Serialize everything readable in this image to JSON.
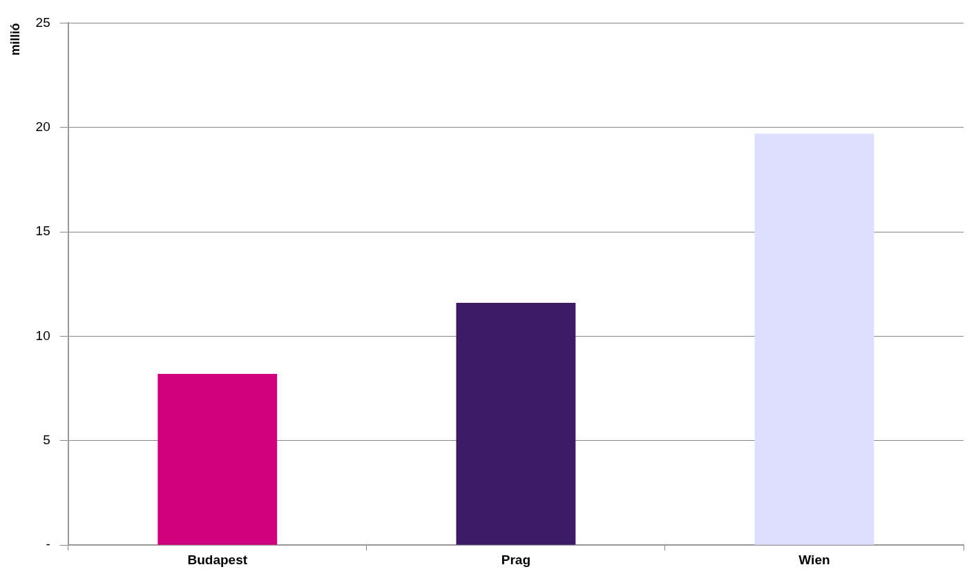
{
  "chart_data": {
    "type": "bar",
    "ylabel": "millió",
    "categories": [
      "Budapest",
      "Prag",
      "Wien"
    ],
    "values": [
      8.2,
      11.6,
      19.7
    ],
    "colors": [
      "#d0007c",
      "#3c1a64",
      "#dedeff"
    ],
    "ylim": [
      0,
      25
    ],
    "yticks": [
      {
        "value": 0,
        "label": "-"
      },
      5,
      10,
      15,
      20,
      25
    ],
    "grid": "y",
    "legend": false
  }
}
